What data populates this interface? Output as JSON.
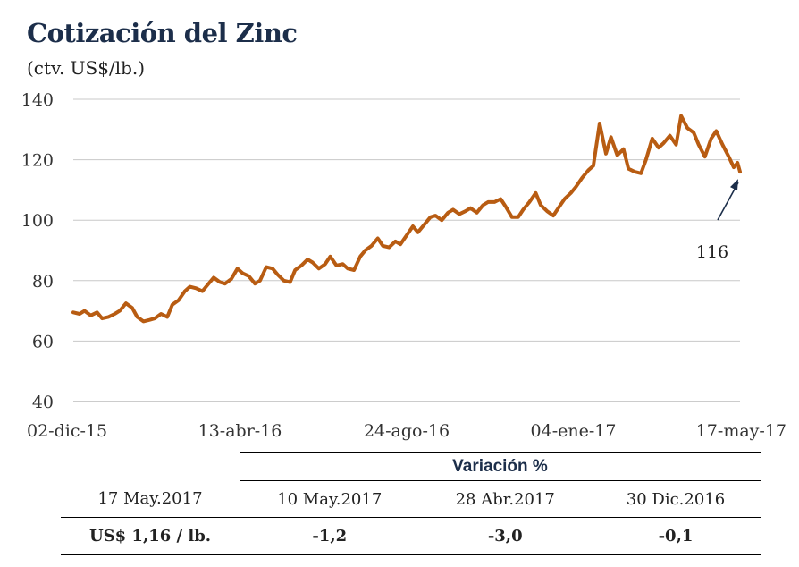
{
  "title": "Cotización del Zinc",
  "subtitle": "(ctv. US$/lb.)",
  "chart_data": {
    "type": "line",
    "title": "Cotización del Zinc",
    "ylabel": "(ctv. US$/lb.)",
    "xlabel": "",
    "ylim": [
      40,
      140
    ],
    "yticks": [
      40,
      60,
      80,
      100,
      120,
      140
    ],
    "xtick_labels": [
      "02-dic-15",
      "13-abr-16",
      "24-ago-16",
      "04-ene-17",
      "17-may-17"
    ],
    "grid": "horizontal",
    "line_color": "#b85c12",
    "annotation": {
      "text": "116",
      "x": "17-may-17",
      "y": 116
    },
    "series": [
      {
        "name": "",
        "points": [
          [
            "02-dic-15",
            69.5
          ],
          [
            "07-dic-15",
            69
          ],
          [
            "11-dic-15",
            70
          ],
          [
            "16-dic-15",
            68.5
          ],
          [
            "21-dic-15",
            69.5
          ],
          [
            "25-dic-15",
            67.5
          ],
          [
            "30-dic-15",
            68
          ],
          [
            "04-ene-16",
            69
          ],
          [
            "08-ene-16",
            70
          ],
          [
            "13-ene-16",
            72.5
          ],
          [
            "18-ene-16",
            71
          ],
          [
            "22-ene-16",
            68
          ],
          [
            "27-ene-16",
            66.5
          ],
          [
            "01-feb-16",
            67
          ],
          [
            "05-feb-16",
            67.5
          ],
          [
            "10-feb-16",
            69
          ],
          [
            "15-feb-16",
            68
          ],
          [
            "19-feb-16",
            72
          ],
          [
            "24-feb-16",
            73.5
          ],
          [
            "29-feb-16",
            76.5
          ],
          [
            "04-mar-16",
            78
          ],
          [
            "09-mar-16",
            77.5
          ],
          [
            "14-mar-16",
            76.5
          ],
          [
            "18-mar-16",
            78.5
          ],
          [
            "23-mar-16",
            81
          ],
          [
            "28-mar-16",
            79.5
          ],
          [
            "01-abr-16",
            79
          ],
          [
            "06-abr-16",
            80.5
          ],
          [
            "11-abr-16",
            84
          ],
          [
            "15-abr-16",
            82.5
          ],
          [
            "20-abr-16",
            81.5
          ],
          [
            "25-abr-16",
            79
          ],
          [
            "29-abr-16",
            80
          ],
          [
            "04-may-16",
            84.5
          ],
          [
            "09-may-16",
            84
          ],
          [
            "13-may-16",
            82
          ],
          [
            "18-may-16",
            80
          ],
          [
            "23-may-16",
            79.5
          ],
          [
            "27-may-16",
            83.5
          ],
          [
            "01-jun-16",
            85
          ],
          [
            "06-jun-16",
            87
          ],
          [
            "10-jun-16",
            86
          ],
          [
            "15-jun-16",
            84
          ],
          [
            "20-jun-16",
            85.5
          ],
          [
            "24-jun-16",
            88
          ],
          [
            "29-jun-16",
            85
          ],
          [
            "04-jul-16",
            85.5
          ],
          [
            "08-jul-16",
            84
          ],
          [
            "13-jul-16",
            83.5
          ],
          [
            "18-jul-16",
            88
          ],
          [
            "22-jul-16",
            90
          ],
          [
            "27-jul-16",
            91.5
          ],
          [
            "01-ago-16",
            94
          ],
          [
            "05-ago-16",
            91.5
          ],
          [
            "10-ago-16",
            91
          ],
          [
            "15-ago-16",
            93
          ],
          [
            "19-ago-16",
            92
          ],
          [
            "24-ago-16",
            95
          ],
          [
            "29-ago-16",
            98
          ],
          [
            "02-sep-16",
            96
          ],
          [
            "07-sep-16",
            98.5
          ],
          [
            "12-sep-16",
            101
          ],
          [
            "16-sep-16",
            101.5
          ],
          [
            "21-sep-16",
            100
          ],
          [
            "26-sep-16",
            102.5
          ],
          [
            "30-sep-16",
            103.5
          ],
          [
            "05-oct-16",
            102
          ],
          [
            "10-oct-16",
            103
          ],
          [
            "14-oct-16",
            104
          ],
          [
            "19-oct-16",
            102.5
          ],
          [
            "24-oct-16",
            105
          ],
          [
            "28-oct-16",
            106
          ],
          [
            "02-nov-16",
            106
          ],
          [
            "07-nov-16",
            107
          ],
          [
            "11-nov-16",
            104.5
          ],
          [
            "16-nov-16",
            101
          ],
          [
            "21-nov-16",
            101
          ],
          [
            "25-nov-16",
            103.5
          ],
          [
            "30-nov-16",
            106
          ],
          [
            "05-dic-16",
            109
          ],
          [
            "09-dic-16",
            105
          ],
          [
            "14-dic-16",
            103
          ],
          [
            "19-dic-16",
            101.5
          ],
          [
            "23-dic-16",
            104
          ],
          [
            "28-dic-16",
            107
          ],
          [
            "02-ene-17",
            109
          ],
          [
            "06-ene-17",
            111
          ],
          [
            "11-ene-17",
            114
          ],
          [
            "16-ene-17",
            116.5
          ],
          [
            "20-ene-17",
            118
          ],
          [
            "25-ene-17",
            132
          ],
          [
            "30-ene-17",
            122
          ],
          [
            "03-feb-17",
            127.5
          ],
          [
            "08-feb-17",
            121.5
          ],
          [
            "13-feb-17",
            123.5
          ],
          [
            "17-feb-17",
            117
          ],
          [
            "22-feb-17",
            116
          ],
          [
            "27-feb-17",
            115.5
          ],
          [
            "03-mar-17",
            120
          ],
          [
            "08-mar-17",
            127
          ],
          [
            "13-mar-17",
            124
          ],
          [
            "17-mar-17",
            125.5
          ],
          [
            "22-mar-17",
            128
          ],
          [
            "27-mar-17",
            125
          ],
          [
            "31-mar-17",
            134.5
          ],
          [
            "05-abr-17",
            130.5
          ],
          [
            "10-abr-17",
            129
          ],
          [
            "14-abr-17",
            125
          ],
          [
            "19-abr-17",
            121
          ],
          [
            "24-abr-17",
            127
          ],
          [
            "28-abr-17",
            129.5
          ],
          [
            "03-may-17",
            125
          ],
          [
            "08-may-17",
            121
          ],
          [
            "12-may-17",
            117.5
          ],
          [
            "15-may-17",
            119
          ],
          [
            "17-may-17",
            116
          ]
        ]
      }
    ]
  },
  "table": {
    "header": "Variación %",
    "columns": [
      "17 May.2017",
      "10 May.2017",
      "28 Abr.2017",
      "30 Dic.2016"
    ],
    "values": [
      "US$ 1,16 / lb.",
      "-1,2",
      "-3,0",
      "-0,1"
    ]
  }
}
